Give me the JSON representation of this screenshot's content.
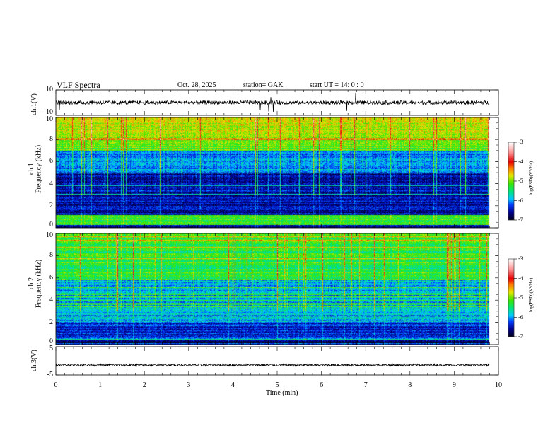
{
  "header": {
    "title": "VLF  Spectra",
    "date": "Oct. 28,  2025",
    "station": "station= GAK",
    "start": "start  UT  =    14: 0   : 0"
  },
  "chart_data": [
    {
      "type": "line",
      "name": "ch1-waveform",
      "ylabel": "ch.1(V)",
      "ylim": [
        -10,
        10
      ],
      "yticks": [
        "10",
        "-10"
      ],
      "xlim": [
        0,
        10
      ],
      "baseline": 0
    },
    {
      "type": "heatmap",
      "name": "ch1-spectrogram",
      "ylabel": "ch.1\nFrequency  (kHz)",
      "ylabel_line1": "ch.1",
      "ylabel_line2": "Frequency  (kHz)",
      "ylim": [
        0,
        10
      ],
      "yticks": [
        "0",
        "2",
        "4",
        "6",
        "8",
        "10"
      ],
      "xlim": [
        0,
        10
      ],
      "data_end_min": 9.8,
      "colorbar": {
        "label": "log(PSD)(V²/Hz)",
        "range": [
          -7,
          -3
        ],
        "ticks": [
          "-3",
          "-4",
          "-5",
          "-6",
          "-7"
        ]
      }
    },
    {
      "type": "heatmap",
      "name": "ch2-spectrogram",
      "ylabel_line1": "ch.2",
      "ylabel_line2": "Frequency  (kHz)",
      "ylim": [
        0,
        10
      ],
      "yticks": [
        "0",
        "2",
        "4",
        "6",
        "8",
        "10"
      ],
      "xlim": [
        0,
        10
      ],
      "data_end_min": 9.8,
      "colorbar": {
        "label": "log(PSD)(V²/Hz)",
        "range": [
          -7,
          -3
        ],
        "ticks": [
          "-3",
          "-4",
          "-5",
          "-6",
          "-7"
        ]
      }
    },
    {
      "type": "line",
      "name": "ch3-waveform",
      "ylabel": "ch.3(V)",
      "ylim": [
        -5,
        5
      ],
      "yticks": [
        "5",
        "-5"
      ],
      "xlim": [
        0,
        10
      ],
      "baseline": -1.5
    }
  ],
  "xaxis": {
    "label": "Time  (min)",
    "ticks": [
      "0",
      "1",
      "2",
      "3",
      "4",
      "5",
      "6",
      "7",
      "8",
      "9",
      "10"
    ]
  }
}
